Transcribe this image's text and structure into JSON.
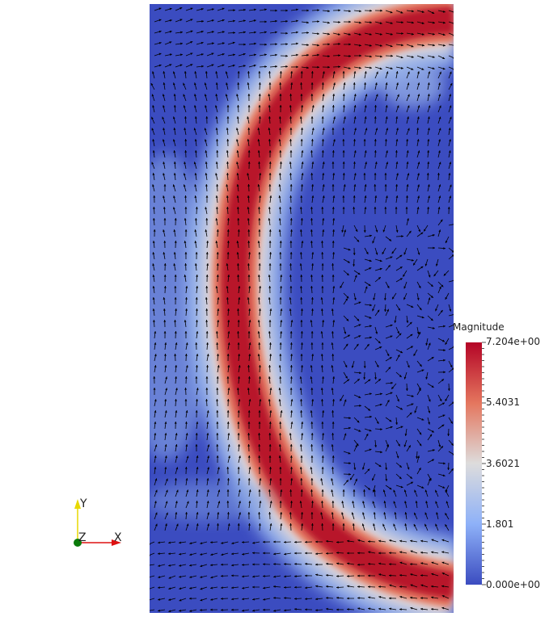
{
  "colorbar": {
    "title": "Magnitude",
    "max_label": "7.204e+00",
    "tick2": "5.4031",
    "tick3": "3.6021",
    "tick4": "1.801",
    "min_label": "0.000e+00",
    "range": [
      0,
      7.204
    ]
  },
  "axes": {
    "y_label": "Y",
    "z_label": "Z",
    "x_label": "X",
    "x_color": "#dd1111",
    "y_color": "#e8d800",
    "z_color": "#0a7a0a"
  },
  "colors": {
    "low": "#3b4cc0",
    "mid": "#dddddd",
    "high": "#b40426",
    "arrows": "#000000"
  }
}
